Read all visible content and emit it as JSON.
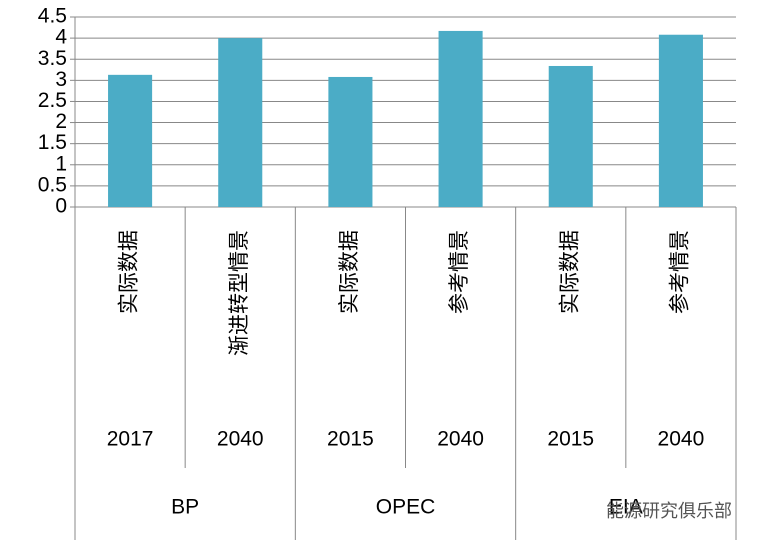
{
  "chart_data": {
    "type": "bar",
    "categories": [
      "实际数据",
      "渐进转型情景",
      "实际数据",
      "参考情景",
      "实际数据",
      "参考情景"
    ],
    "category_years": [
      "2017",
      "2040",
      "2015",
      "2040",
      "2015",
      "2040"
    ],
    "category_groups": [
      "BP",
      "OPEC",
      "EIA"
    ],
    "values": [
      3.13,
      4.0,
      3.08,
      4.17,
      3.34,
      4.08
    ],
    "color": "#4bacc6",
    "ylim": [
      0,
      4.5
    ],
    "yticks": [
      0,
      0.5,
      1,
      1.5,
      2,
      2.5,
      3,
      3.5,
      4,
      4.5
    ],
    "grid": true,
    "watermark": "能源研究俱乐部"
  }
}
